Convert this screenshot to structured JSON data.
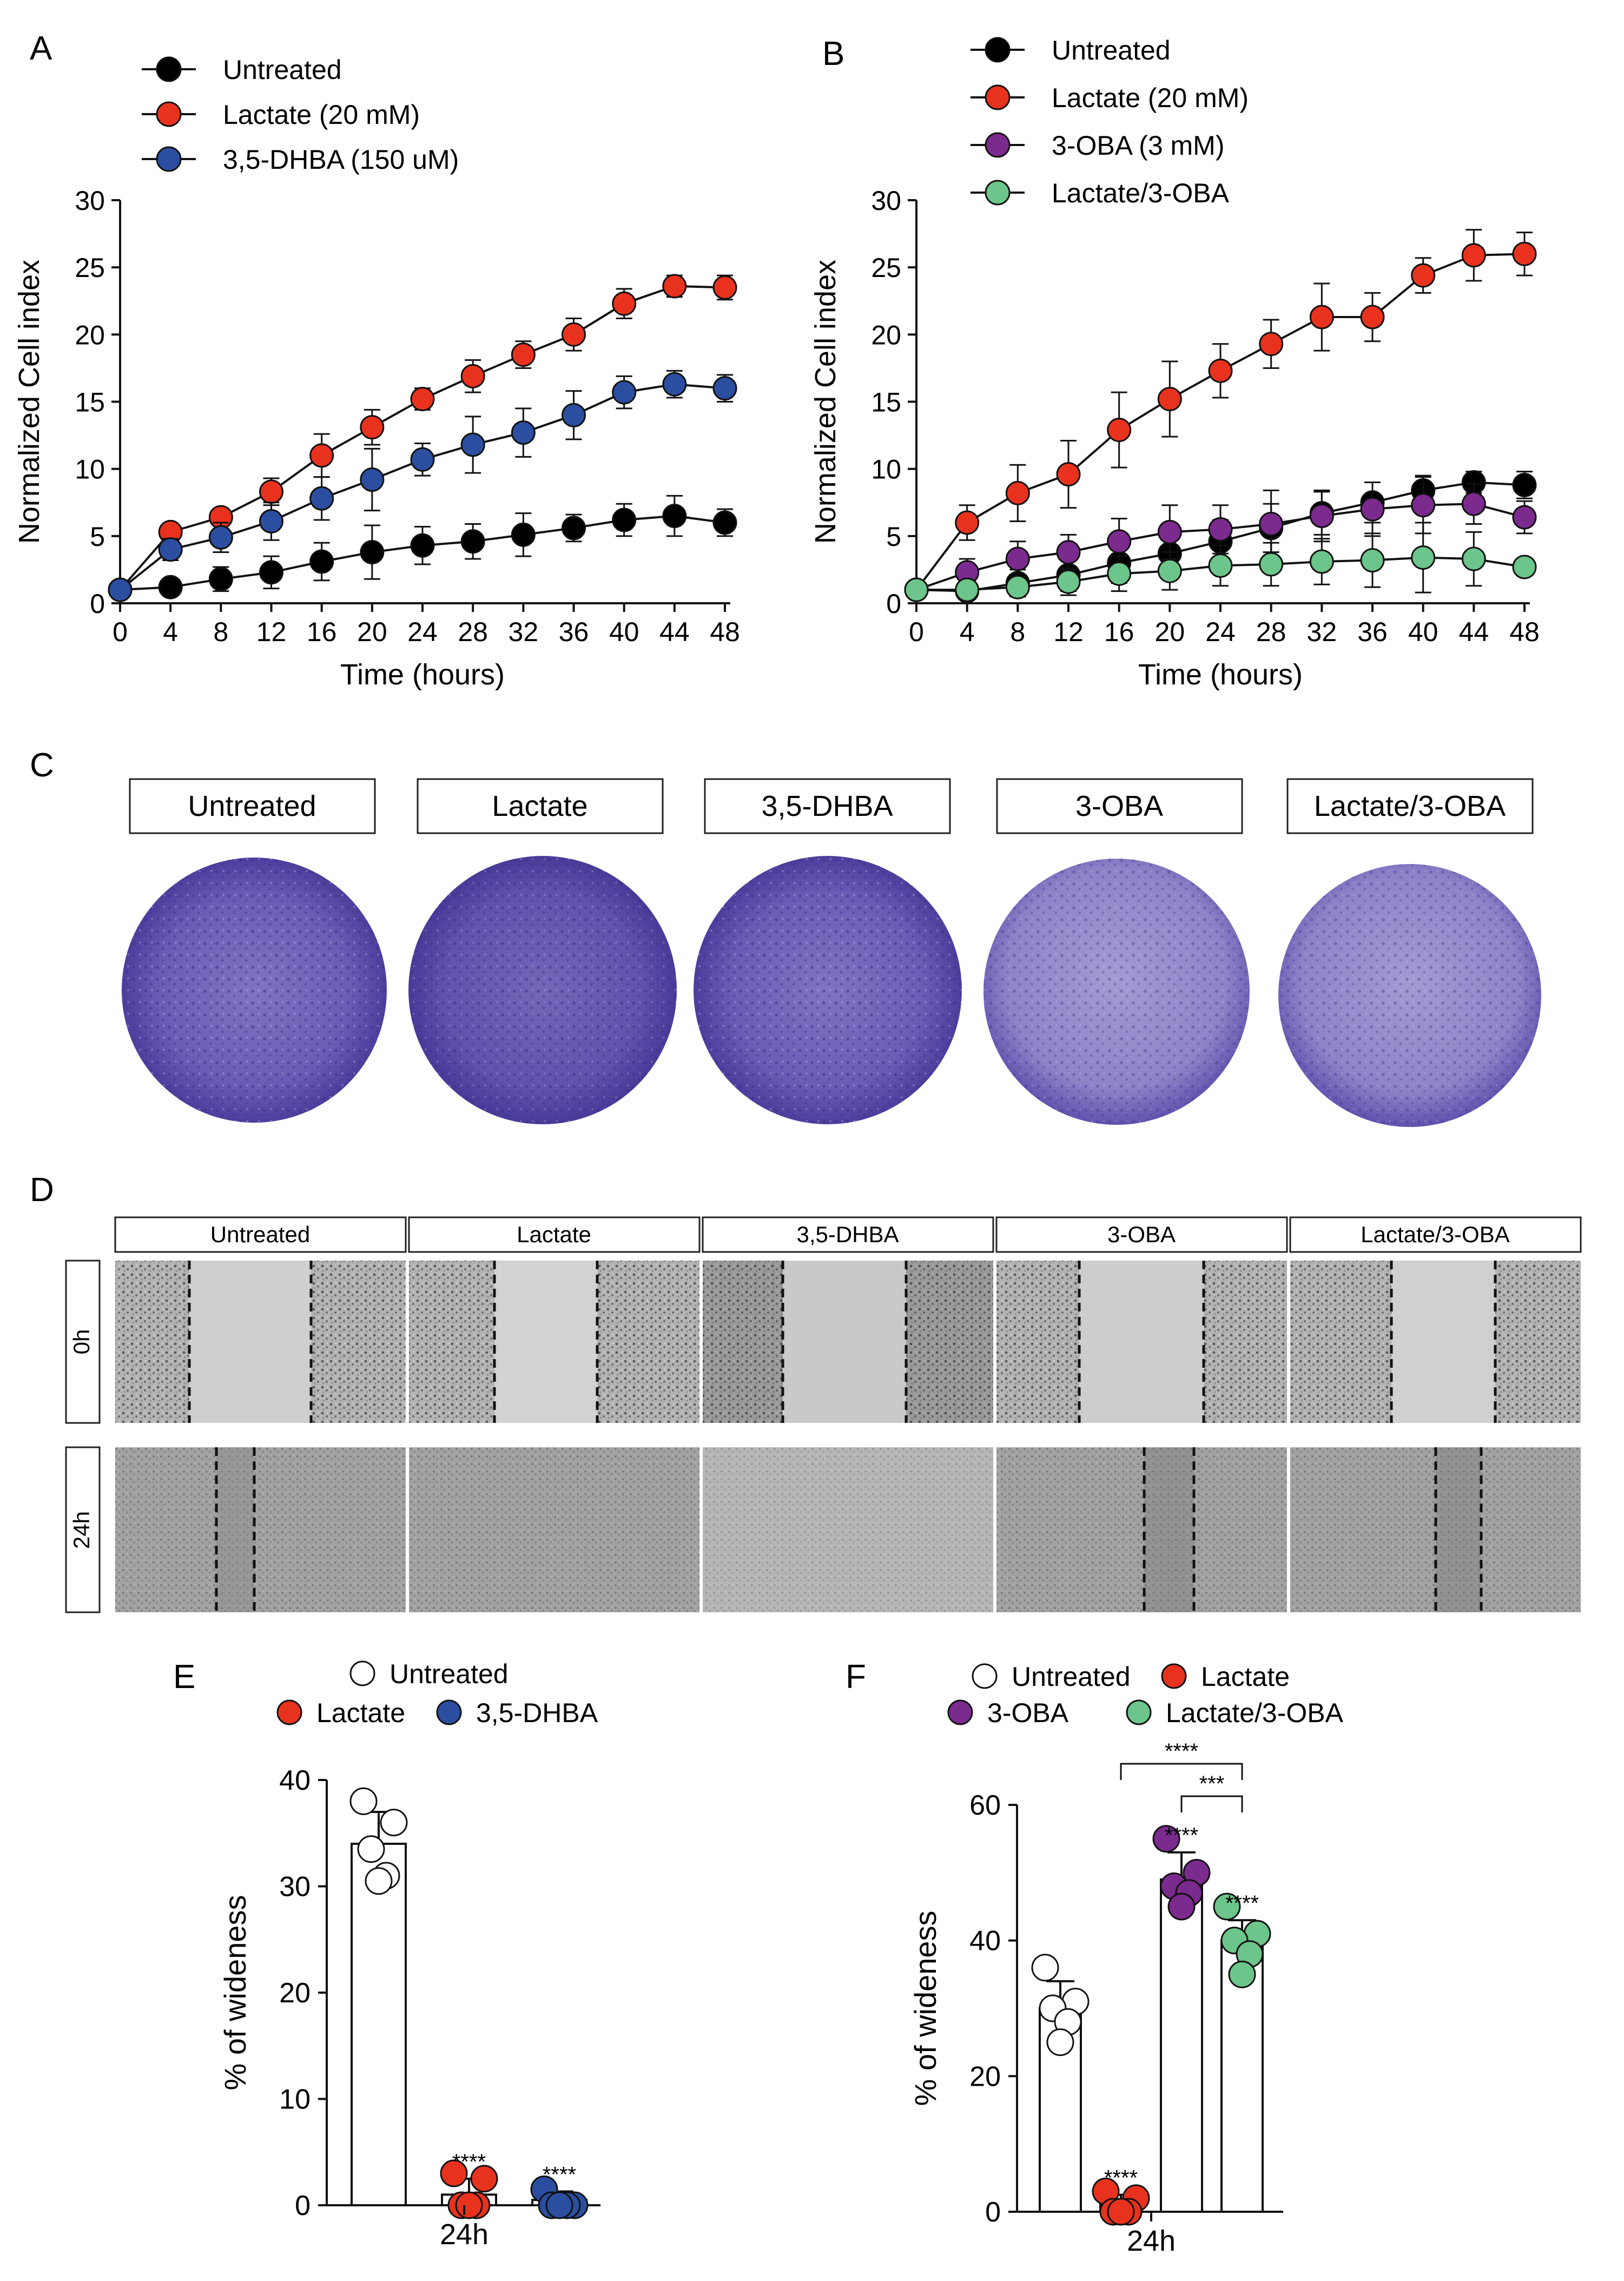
{
  "colors": {
    "untreated": "#000000",
    "lactate": "#e8321e",
    "dhba": "#2b4ea0",
    "oba": "#7b2a8e",
    "combo": "#6cc58a",
    "crystal_violet": "#5b4ca8",
    "open_marker": "#ffffff"
  },
  "chart_data": [
    {
      "panel": "A",
      "type": "line",
      "xlabel": "Time (hours)",
      "ylabel": "Normalized Cell index",
      "xlim": [
        0,
        48
      ],
      "ylim": [
        0,
        30
      ],
      "x_ticks": [
        "0",
        "4",
        "8",
        "12",
        "16",
        "20",
        "24",
        "28",
        "32",
        "36",
        "40",
        "44",
        "48"
      ],
      "y_ticks": [
        "0",
        "5",
        "10",
        "15",
        "20",
        "25",
        "30"
      ],
      "x": [
        0,
        4,
        8,
        12,
        16,
        20,
        24,
        28,
        32,
        36,
        40,
        44,
        48
      ],
      "series": [
        {
          "name": "Untreated",
          "color": "#000000",
          "values": [
            1.0,
            1.2,
            1.8,
            2.3,
            3.1,
            3.8,
            4.3,
            4.6,
            5.1,
            5.6,
            6.2,
            6.5,
            6.0
          ],
          "errors": [
            0.3,
            0.4,
            0.9,
            1.2,
            1.4,
            2.0,
            1.4,
            1.3,
            1.6,
            1.0,
            1.2,
            1.5,
            1.0
          ]
        },
        {
          "name": "Lactate (20 mM)",
          "color": "#e8321e",
          "values": [
            1.0,
            5.3,
            6.4,
            8.3,
            11.0,
            13.1,
            15.2,
            16.9,
            18.5,
            20.0,
            22.3,
            23.6,
            23.5
          ],
          "errors": [
            0.3,
            0.5,
            0.6,
            1.0,
            1.6,
            1.3,
            0.8,
            1.2,
            1.0,
            1.2,
            1.1,
            0.8,
            0.9
          ]
        },
        {
          "name": "3,5-DHBA (150 uM)",
          "color": "#2b4ea0",
          "values": [
            1.0,
            4.0,
            4.9,
            6.1,
            7.8,
            9.2,
            10.7,
            11.8,
            12.7,
            14.0,
            15.7,
            16.3,
            16.0
          ],
          "errors": [
            0.3,
            0.8,
            1.1,
            1.4,
            1.6,
            2.3,
            1.2,
            2.1,
            1.8,
            1.8,
            1.2,
            1.0,
            1.0
          ]
        }
      ]
    },
    {
      "panel": "B",
      "type": "line",
      "xlabel": "Time (hours)",
      "ylabel": "Normalized Cell index",
      "xlim": [
        0,
        48
      ],
      "ylim": [
        0,
        30
      ],
      "x_ticks": [
        "0",
        "4",
        "8",
        "12",
        "16",
        "20",
        "24",
        "28",
        "32",
        "36",
        "40",
        "44",
        "48"
      ],
      "y_ticks": [
        "0",
        "5",
        "10",
        "15",
        "20",
        "25",
        "30"
      ],
      "x": [
        0,
        4,
        8,
        12,
        16,
        20,
        24,
        28,
        32,
        36,
        40,
        44,
        48
      ],
      "series": [
        {
          "name": "Untreated",
          "color": "#000000",
          "values": [
            1.0,
            0.9,
            1.5,
            2.1,
            3.0,
            3.7,
            4.6,
            5.6,
            6.7,
            7.5,
            8.4,
            9.0,
            8.8
          ],
          "errors": [
            0.3,
            0.6,
            1.0,
            1.2,
            1.5,
            1.5,
            1.6,
            1.8,
            1.6,
            1.5,
            1.1,
            0.8,
            1.0
          ]
        },
        {
          "name": "Lactate (20 mM)",
          "color": "#e8321e",
          "values": [
            1.0,
            6.0,
            8.2,
            9.6,
            12.9,
            15.2,
            17.3,
            19.3,
            21.3,
            21.3,
            24.4,
            25.9,
            26.0
          ],
          "errors": [
            0.3,
            1.3,
            2.1,
            2.5,
            2.8,
            2.8,
            2.0,
            1.8,
            2.5,
            1.8,
            1.3,
            1.9,
            1.6
          ]
        },
        {
          "name": "3-OBA (3 mM)",
          "color": "#7b2a8e",
          "values": [
            1.0,
            2.3,
            3.3,
            3.8,
            4.6,
            5.3,
            5.5,
            5.9,
            6.5,
            7.0,
            7.3,
            7.4,
            6.4
          ],
          "errors": [
            0.3,
            1.0,
            1.3,
            1.3,
            1.7,
            2.0,
            1.8,
            2.5,
            1.9,
            2.0,
            2.1,
            1.5,
            1.2
          ]
        },
        {
          "name": "Lactate/3-OBA",
          "color": "#6cc58a",
          "values": [
            1.0,
            1.0,
            1.2,
            1.6,
            2.2,
            2.4,
            2.8,
            2.9,
            3.1,
            3.2,
            3.4,
            3.3,
            2.7
          ],
          "errors": [
            0.3,
            0.5,
            0.7,
            1.0,
            1.3,
            1.4,
            1.5,
            1.6,
            1.7,
            2.0,
            2.6,
            2.0,
            0.6
          ]
        }
      ]
    },
    {
      "panel": "E",
      "type": "bar",
      "categories": [
        "Untreated",
        "Lactate",
        "3,5-DHBA"
      ],
      "legend_labels": [
        "Untreated",
        "Lactate",
        "3,5-DHBA"
      ],
      "values": [
        34.0,
        1.0,
        0.5
      ],
      "errors": [
        3.0,
        1.5,
        0.8
      ],
      "points": [
        [
          38.0,
          36.0,
          33.5,
          31.0,
          30.5
        ],
        [
          3.0,
          2.5,
          0.0,
          0.0,
          0.0
        ],
        [
          1.5,
          0.0,
          0.0,
          0.0,
          0.0
        ]
      ],
      "significance": [
        "",
        "****",
        "****"
      ],
      "xlabel": "24h",
      "ylabel": "% of wideness",
      "ylim": [
        0,
        40
      ],
      "y_ticks": [
        "0",
        "10",
        "20",
        "30",
        "40"
      ]
    },
    {
      "panel": "F",
      "type": "bar",
      "categories": [
        "Untreated",
        "Lactate",
        "3-OBA",
        "Lactate/3-OBA"
      ],
      "legend_labels": [
        "Untreated",
        "Lactate",
        "3-OBA",
        "Lactate/3-OBA"
      ],
      "values": [
        30.0,
        1.0,
        49.0,
        40.0
      ],
      "errors": [
        4.0,
        1.5,
        4.0,
        3.0
      ],
      "points": [
        [
          36.0,
          31.0,
          30.0,
          28.0,
          25.0
        ],
        [
          3.0,
          2.0,
          0.0,
          0.0,
          0.0
        ],
        [
          55.0,
          50.0,
          48.0,
          47.0,
          45.0
        ],
        [
          45.0,
          41.0,
          40.0,
          38.0,
          35.0
        ]
      ],
      "significance": [
        "",
        "****",
        "****",
        "****"
      ],
      "brackets": [
        {
          "from": 1,
          "to": 3,
          "label": "****"
        },
        {
          "from": 2,
          "to": 3,
          "label": "***"
        }
      ],
      "xlabel": "24h",
      "ylabel": "% of wideness",
      "ylim": [
        0,
        60
      ],
      "y_ticks": [
        "0",
        "20",
        "40",
        "60"
      ]
    }
  ],
  "panels": {
    "labels": [
      "A",
      "B",
      "C",
      "D",
      "E",
      "F"
    ],
    "colony_labels": [
      "Untreated",
      "Lactate",
      "3,5-DHBA",
      "3-OBA",
      "Lactate/3-OBA"
    ],
    "wound_labels": [
      "Untreated",
      "Lactate",
      "3,5-DHBA",
      "3-OBA",
      "Lactate/3-OBA"
    ],
    "wound_rows": [
      "0h",
      "24h"
    ]
  }
}
